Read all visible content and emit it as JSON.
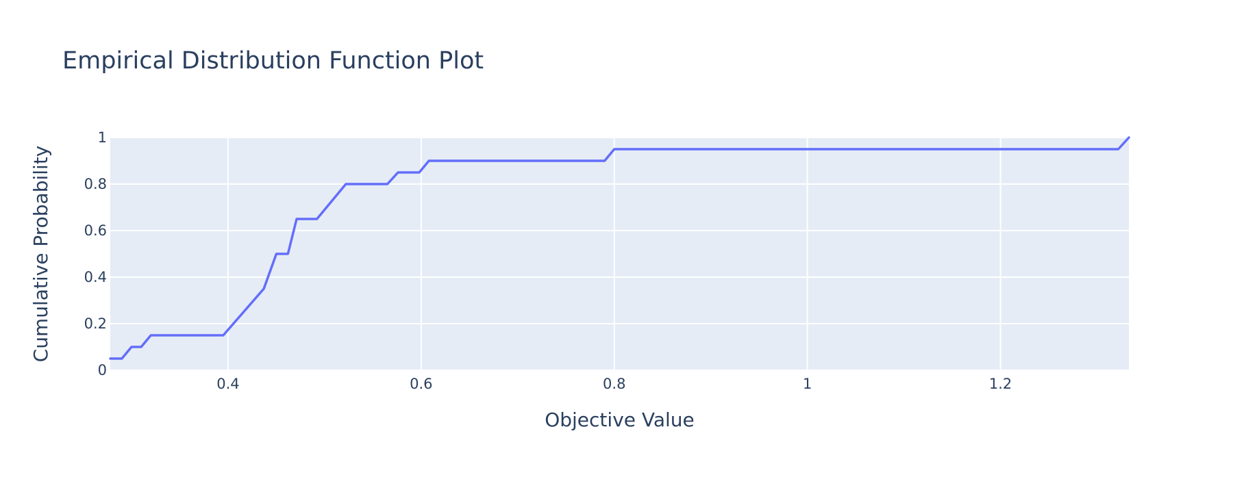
{
  "colors": {
    "plot_background": "#e5ecf6",
    "line": "#636efa",
    "text": "#2a3f5f"
  },
  "chart_data": {
    "type": "line",
    "title": "Empirical Distribution Function Plot",
    "xlabel": "Objective Value",
    "ylabel": "Cumulative Probability",
    "xlim": [
      0.278,
      1.333
    ],
    "ylim": [
      0,
      1
    ],
    "x_ticks": [
      0.4,
      0.6,
      0.8,
      1,
      1.2
    ],
    "x_tick_labels": [
      "0.4",
      "0.6",
      "0.8",
      "1",
      "1.2"
    ],
    "y_ticks": [
      0,
      0.2,
      0.4,
      0.6,
      0.8,
      1
    ],
    "y_tick_labels": [
      "0",
      "0.2",
      "0.4",
      "0.6",
      "0.8",
      "1"
    ],
    "grid": true,
    "legend": "none",
    "series": [
      {
        "x": [
          0.278,
          0.29,
          0.3,
          0.31,
          0.32,
          0.395,
          0.437,
          0.45,
          0.462,
          0.471,
          0.492,
          0.522,
          0.565,
          0.576,
          0.598,
          0.608,
          0.79,
          0.8,
          1.322,
          1.333
        ],
        "y": [
          0.05,
          0.05,
          0.1,
          0.1,
          0.15,
          0.15,
          0.35,
          0.5,
          0.5,
          0.65,
          0.65,
          0.8,
          0.8,
          0.85,
          0.85,
          0.9,
          0.9,
          0.95,
          0.95,
          1.0
        ]
      }
    ]
  }
}
